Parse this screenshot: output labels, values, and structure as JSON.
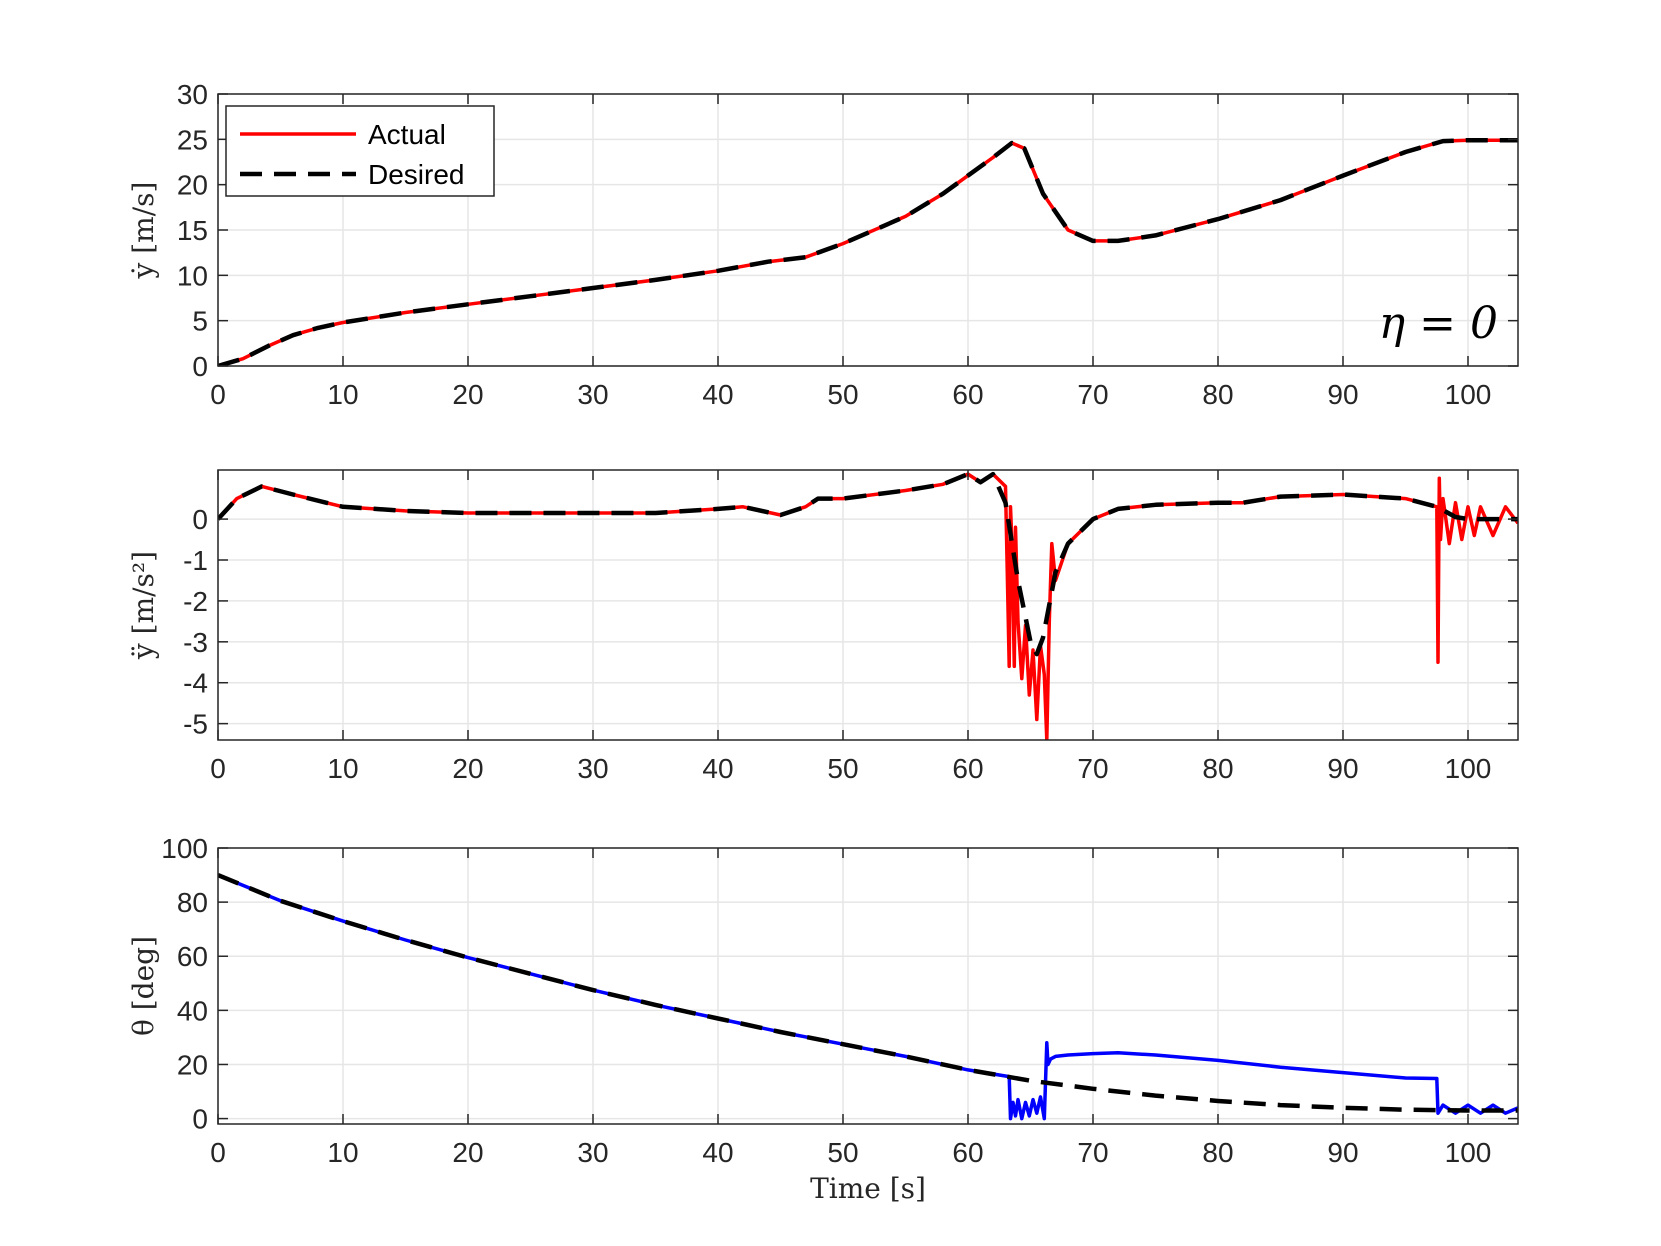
{
  "colors": {
    "actual": "#ff0000",
    "actual_theta": "#0000ff",
    "desired": "#000000",
    "grid": "#e6e6e6",
    "axis": "#262626"
  },
  "chart_data": [
    {
      "type": "line",
      "ylabel": "ẏ [m/s]",
      "xlabel": "",
      "xlim": [
        0,
        104
      ],
      "ylim": [
        0,
        30
      ],
      "xticks": [
        0,
        10,
        20,
        30,
        40,
        50,
        60,
        70,
        80,
        90,
        100
      ],
      "yticks": [
        0,
        5,
        10,
        15,
        20,
        25,
        30
      ],
      "grid": true,
      "legend": {
        "placement": "top-left",
        "entries": [
          "Actual",
          "Desired"
        ]
      },
      "annotation": "η = 0",
      "series": [
        {
          "name": "Actual",
          "style": "solid",
          "x": [
            0,
            2,
            4,
            6,
            8,
            10,
            15,
            20,
            25,
            30,
            35,
            40,
            44,
            47,
            50,
            55,
            58,
            60,
            62,
            63.5,
            64.5,
            66,
            68,
            70,
            72,
            75,
            80,
            85,
            90,
            95,
            98,
            100,
            104
          ],
          "y": [
            0,
            0.8,
            2.2,
            3.4,
            4.2,
            4.8,
            5.9,
            6.8,
            7.7,
            8.6,
            9.5,
            10.5,
            11.5,
            12,
            13.5,
            16.5,
            19,
            21,
            23,
            24.6,
            24,
            19,
            15,
            13.8,
            13.8,
            14.4,
            16.2,
            18.3,
            21,
            23.6,
            24.8,
            24.9,
            24.9
          ]
        },
        {
          "name": "Desired",
          "style": "dashed",
          "x": [
            0,
            2,
            4,
            6,
            8,
            10,
            15,
            20,
            25,
            30,
            35,
            40,
            44,
            47,
            50,
            55,
            58,
            60,
            62,
            63.5,
            64.5,
            66,
            68,
            70,
            72,
            75,
            80,
            85,
            90,
            95,
            98,
            100,
            104
          ],
          "y": [
            0,
            0.8,
            2.2,
            3.4,
            4.2,
            4.8,
            5.9,
            6.8,
            7.7,
            8.6,
            9.5,
            10.5,
            11.5,
            12,
            13.5,
            16.5,
            19,
            21,
            23,
            24.6,
            24,
            19,
            15,
            13.8,
            13.8,
            14.4,
            16.2,
            18.3,
            21,
            23.6,
            24.8,
            24.9,
            24.9
          ]
        }
      ]
    },
    {
      "type": "line",
      "ylabel": "ÿ [m/s²]",
      "xlabel": "",
      "xlim": [
        0,
        104
      ],
      "ylim": [
        -5.4,
        1.2
      ],
      "xticks": [
        0,
        10,
        20,
        30,
        40,
        50,
        60,
        70,
        80,
        90,
        100
      ],
      "yticks": [
        0,
        -1,
        -2,
        -3,
        -4,
        -5
      ],
      "grid": true,
      "series": [
        {
          "name": "Actual",
          "style": "solid",
          "x": [
            0,
            1.5,
            3.5,
            6,
            10,
            15,
            20,
            30,
            35,
            40,
            42,
            45,
            47,
            48,
            50,
            55,
            58,
            60,
            61,
            62,
            63,
            63.3,
            63.4,
            63.5,
            63.7,
            63.8,
            64,
            64.3,
            64.6,
            64.9,
            65.2,
            65.5,
            65.8,
            66.1,
            66.3,
            66.5,
            66.7,
            67,
            68,
            70,
            72,
            75,
            80,
            82,
            85,
            90,
            95,
            97.5,
            97.6,
            97.7,
            97.8,
            98,
            98.5,
            99,
            99.5,
            100,
            100.5,
            101,
            102,
            103,
            104
          ],
          "y": [
            0,
            0.5,
            0.8,
            0.6,
            0.3,
            0.2,
            0.15,
            0.15,
            0.15,
            0.25,
            0.3,
            0.1,
            0.3,
            0.5,
            0.5,
            0.7,
            0.85,
            1.1,
            0.9,
            1.1,
            0.8,
            -3.6,
            0.3,
            -0.5,
            -3.6,
            -0.2,
            -2.5,
            -3.9,
            -2.6,
            -4.3,
            -3.2,
            -4.9,
            -3.1,
            -3.8,
            -5.4,
            -2.5,
            -0.6,
            -1.5,
            -0.6,
            0,
            0.25,
            0.35,
            0.4,
            0.4,
            0.55,
            0.6,
            0.5,
            0.3,
            -3.5,
            1.0,
            -0.5,
            0.5,
            -0.6,
            0.4,
            -0.5,
            0.3,
            -0.4,
            0.3,
            -0.4,
            0.3,
            -0.1
          ]
        },
        {
          "name": "Desired",
          "style": "dashed",
          "x": [
            0,
            1.5,
            3.5,
            6,
            10,
            15,
            20,
            30,
            35,
            40,
            42,
            45,
            47,
            48,
            50,
            55,
            58,
            60,
            61,
            62,
            63,
            64,
            65,
            65.5,
            66,
            67,
            68,
            70,
            72,
            75,
            80,
            82,
            85,
            90,
            95,
            97.5,
            99,
            100,
            102,
            104
          ],
          "y": [
            0,
            0.5,
            0.8,
            0.6,
            0.3,
            0.2,
            0.15,
            0.15,
            0.15,
            0.25,
            0.3,
            0.1,
            0.3,
            0.5,
            0.5,
            0.7,
            0.85,
            1.1,
            0.9,
            1.1,
            0.4,
            -1.5,
            -3.0,
            -3.3,
            -2.9,
            -1.3,
            -0.6,
            0,
            0.25,
            0.35,
            0.4,
            0.4,
            0.55,
            0.6,
            0.5,
            0.3,
            0.05,
            0,
            0,
            0
          ]
        }
      ]
    },
    {
      "type": "line",
      "ylabel": "θ [deg]",
      "xlabel": "Time [s]",
      "xlim": [
        0,
        104
      ],
      "ylim": [
        -2,
        100
      ],
      "xticks": [
        0,
        10,
        20,
        30,
        40,
        50,
        60,
        70,
        80,
        90,
        100
      ],
      "yticks": [
        0,
        20,
        40,
        60,
        80,
        100
      ],
      "grid": true,
      "series": [
        {
          "name": "Actual",
          "style": "solid",
          "x": [
            0,
            5,
            10,
            15,
            20,
            25,
            30,
            35,
            40,
            45,
            50,
            55,
            60,
            63.3,
            63.4,
            63.6,
            63.8,
            64,
            64.3,
            64.6,
            64.9,
            65.2,
            65.5,
            65.8,
            66.1,
            66.3,
            66.4,
            66.6,
            67,
            68,
            70,
            72,
            75,
            80,
            85,
            90,
            95,
            97.5,
            97.6,
            98,
            99,
            100,
            101,
            102,
            103,
            104
          ],
          "y": [
            90,
            80.5,
            73,
            66,
            59.5,
            53.5,
            47.5,
            42,
            37,
            32,
            27.5,
            23,
            18,
            15.5,
            0,
            6,
            1,
            7,
            0,
            6,
            1,
            7,
            2,
            8,
            0,
            28,
            20,
            22,
            23,
            23.5,
            24,
            24.3,
            23.5,
            21.5,
            19,
            17,
            15,
            14.8,
            2,
            5,
            2,
            5,
            2,
            5,
            2,
            4
          ]
        },
        {
          "name": "Desired",
          "style": "dashed",
          "x": [
            0,
            5,
            10,
            15,
            20,
            25,
            30,
            35,
            40,
            45,
            50,
            55,
            60,
            65,
            70,
            75,
            80,
            85,
            90,
            95,
            100,
            104
          ],
          "y": [
            90,
            80.5,
            73,
            66,
            59.5,
            53.5,
            47.5,
            42,
            37,
            32,
            27.5,
            23,
            18,
            14,
            11,
            8.5,
            6.5,
            5,
            4,
            3.3,
            3,
            3
          ]
        }
      ]
    }
  ]
}
